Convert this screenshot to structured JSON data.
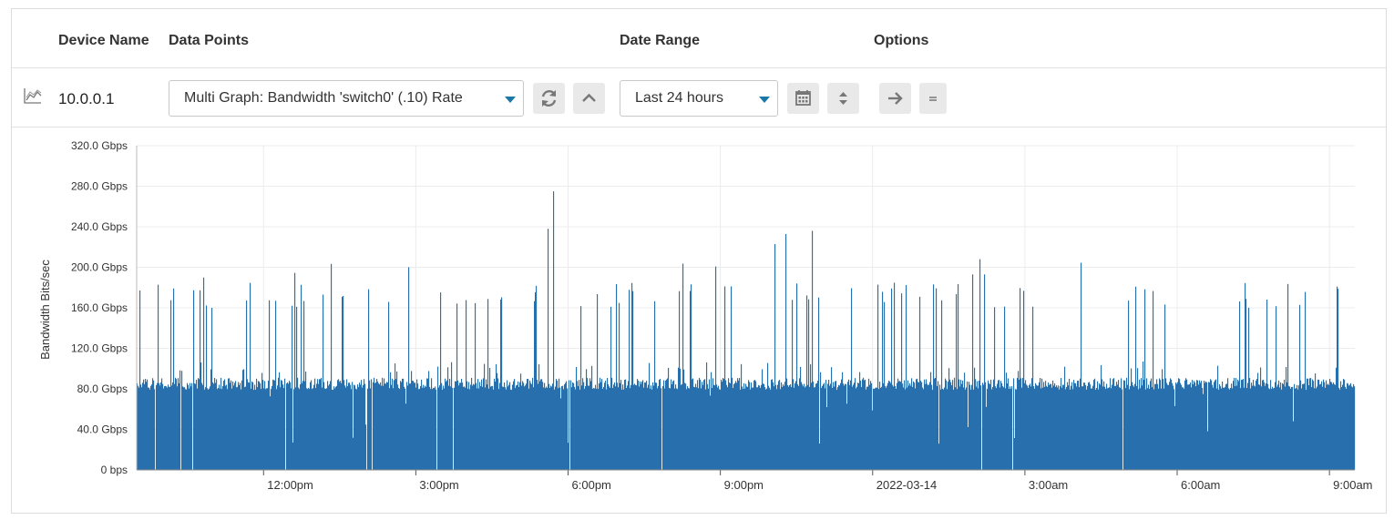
{
  "headers": {
    "device_name": "Device Name",
    "data_points": "Data Points",
    "date_range": "Date Range",
    "options": "Options"
  },
  "device": {
    "name": "10.0.0.1",
    "icon": "line-chart-icon"
  },
  "data_point_select": {
    "value": "Multi Graph: Bandwidth 'switch0' (.10) Rate"
  },
  "date_range_select": {
    "value": "Last 24 hours"
  },
  "icons": {
    "refresh": "refresh-icon",
    "collapse": "chevron-up-icon",
    "calendar": "calendar-icon",
    "sort": "sort-icon",
    "forward": "arrow-right-icon",
    "menu": "menu-icon"
  },
  "colors": {
    "series": "#2770ad",
    "caret": "#1a78a8"
  },
  "chart_data": {
    "type": "area",
    "ylabel": "Bandwidth Bits/sec",
    "ylim": [
      0,
      320
    ],
    "y_unit": "Gbps",
    "yticks": [
      {
        "value": 0,
        "label": "0 bps"
      },
      {
        "value": 40,
        "label": "40.0 Gbps"
      },
      {
        "value": 80,
        "label": "80.0 Gbps"
      },
      {
        "value": 120,
        "label": "120.0 Gbps"
      },
      {
        "value": 160,
        "label": "160.0 Gbps"
      },
      {
        "value": 200,
        "label": "200.0 Gbps"
      },
      {
        "value": 240,
        "label": "240.0 Gbps"
      },
      {
        "value": 280,
        "label": "280.0 Gbps"
      },
      {
        "value": 320,
        "label": "320.0 Gbps"
      }
    ],
    "x_range_hours": [
      0,
      24
    ],
    "xticks": [
      {
        "hour": 2.5,
        "label": "12:00pm"
      },
      {
        "hour": 5.5,
        "label": "3:00pm"
      },
      {
        "hour": 8.5,
        "label": "6:00pm"
      },
      {
        "hour": 11.5,
        "label": "9:00pm"
      },
      {
        "hour": 14.5,
        "label": "2022-03-14"
      },
      {
        "hour": 17.5,
        "label": "3:00am"
      },
      {
        "hour": 20.5,
        "label": "6:00am"
      },
      {
        "hour": 23.5,
        "label": "9:00am"
      }
    ],
    "grid": true,
    "baseline_gbps": 85,
    "series": [
      {
        "values_hourly_peak": [
          185,
          205,
          180,
          205,
          185,
          205,
          190,
          185,
          275,
          190,
          205,
          205,
          235,
          190,
          185,
          185,
          208,
          200,
          205,
          185,
          185,
          205,
          205,
          180
        ],
        "notable_spikes": [
          {
            "hour": 8.1,
            "value": 238
          },
          {
            "hour": 8.2,
            "value": 275
          },
          {
            "hour": 13.3,
            "value": 236
          },
          {
            "hour": 16.6,
            "value": 208
          }
        ]
      }
    ]
  }
}
